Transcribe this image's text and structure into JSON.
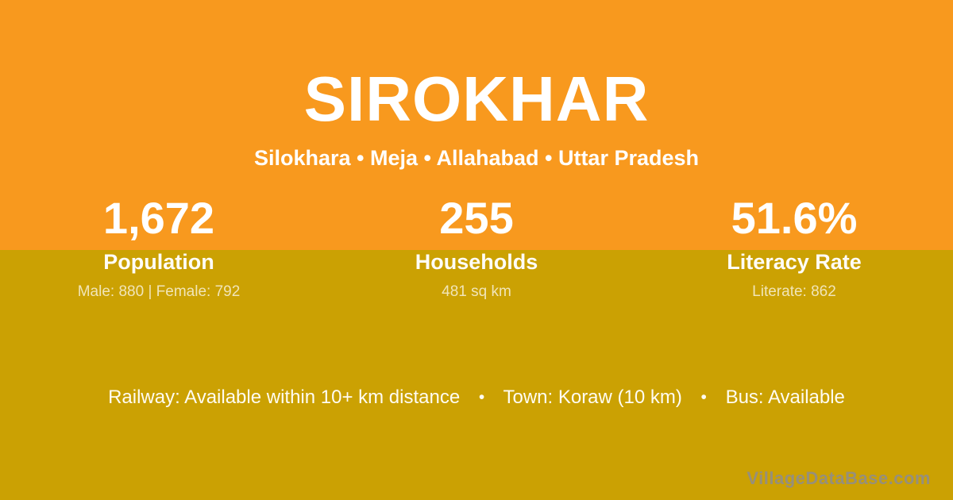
{
  "card": {
    "title": "SIROKHAR",
    "subtitle": "Silokhara • Meja • Allahabad • Uttar Pradesh",
    "stats": [
      {
        "value": "1,672",
        "label": "Population",
        "detail": "Male: 880 | Female: 792"
      },
      {
        "value": "255",
        "label": "Households",
        "detail": "481 sq km"
      },
      {
        "value": "51.6%",
        "label": "Literacy Rate",
        "detail": "Literate: 862"
      }
    ],
    "amenities": {
      "bullet": "•",
      "segments": [
        "Railway: Available within 10+ km distance",
        "Town: Koraw (10 km)",
        "Bus: Available"
      ]
    },
    "watermark": "VillageDataBase.com",
    "colors": {
      "top_background": "#F8991E",
      "bottom_background": "#CBA103",
      "text": "#FFFFFF",
      "muted_text": "rgba(255,255,255,0.72)",
      "watermark_text": "#8D8D90"
    }
  }
}
